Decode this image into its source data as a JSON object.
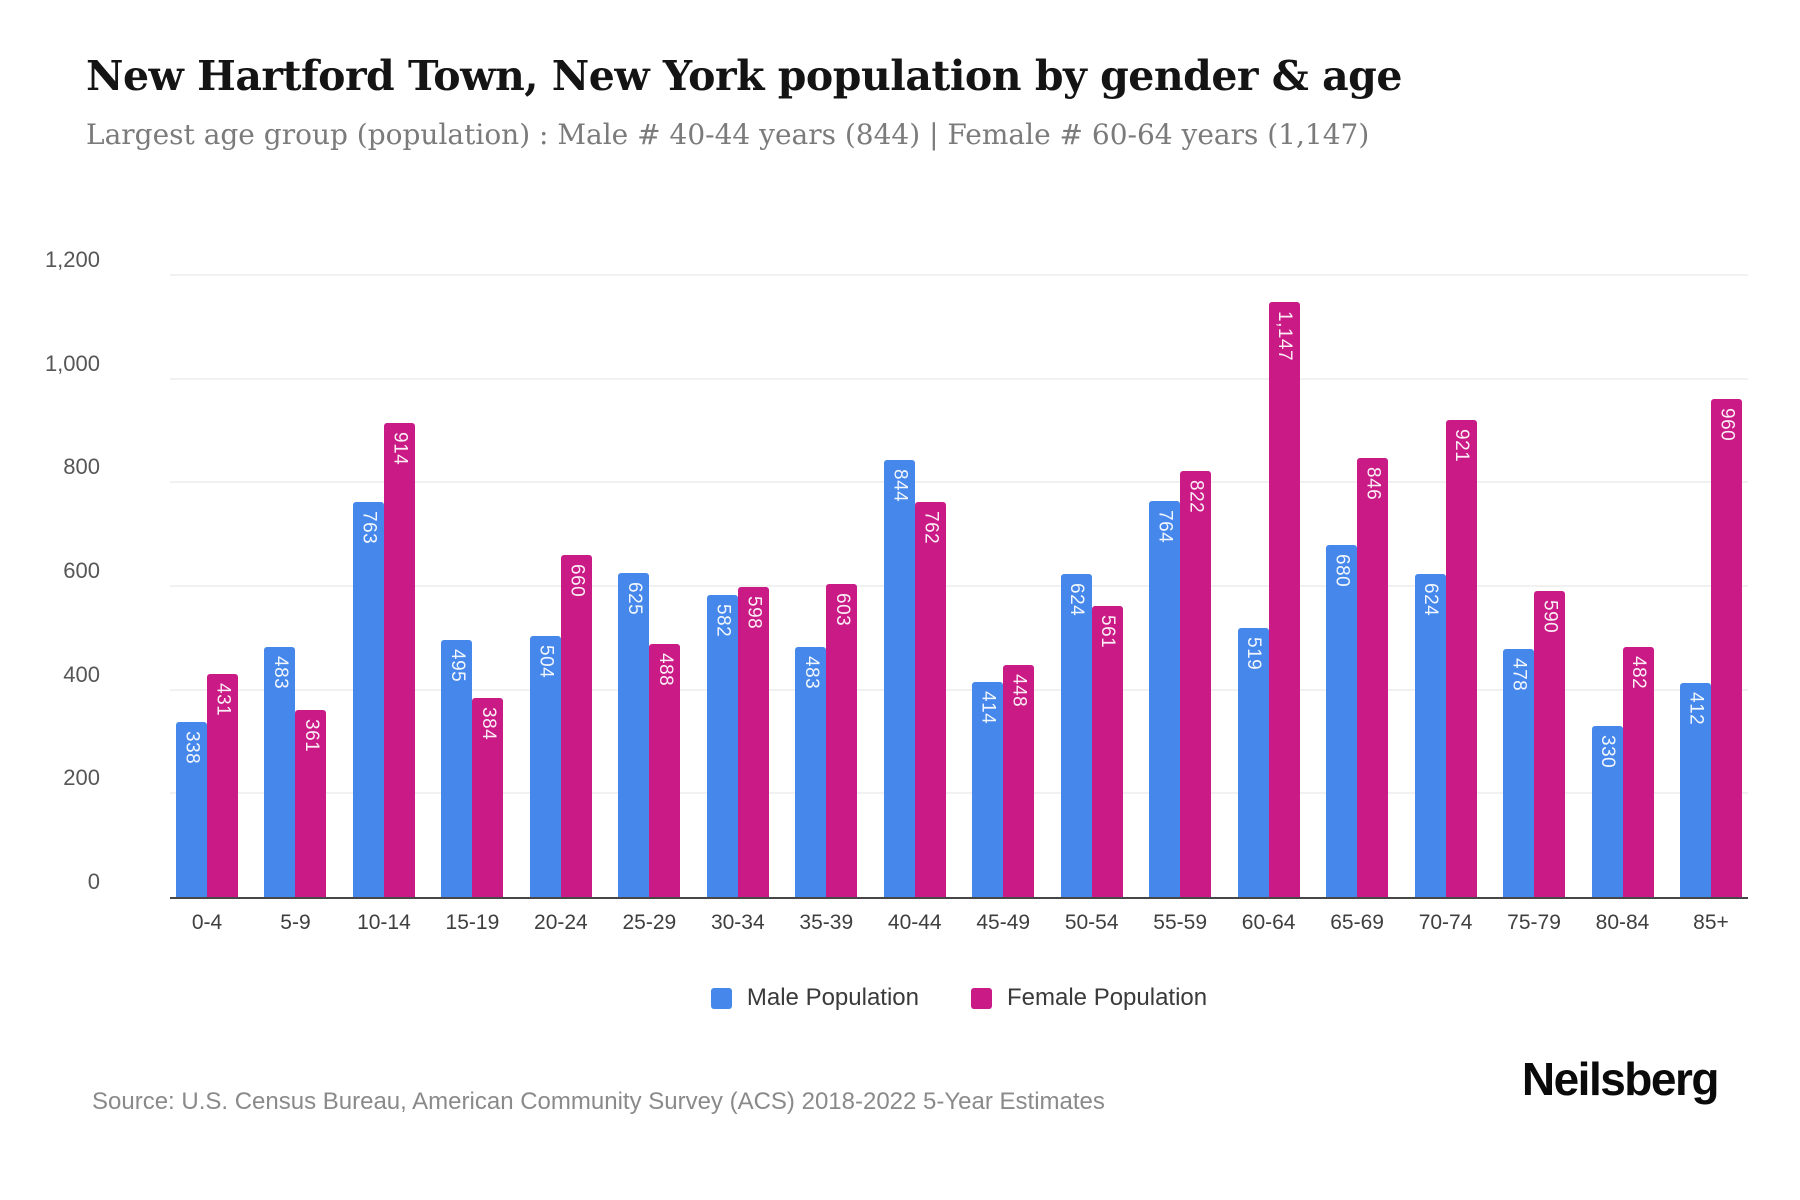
{
  "page": {
    "title": "New Hartford Town, New York population by gender & age",
    "subtitle": "Largest age group (population) : Male # 40-44 years (844) | Female # 60-64 years (1,147)",
    "source": "Source: U.S. Census Bureau, American Community Survey (ACS) 2018-2022 5-Year Estimates",
    "brand": "Neilsberg"
  },
  "colors": {
    "male": "#4687EB",
    "female": "#CA1A86",
    "grid": "#f1f1f1",
    "axis": "#474747",
    "bar_value_text": "#ffffff"
  },
  "chart_data": {
    "type": "bar",
    "title": "New Hartford Town, New York population by gender & age",
    "categories": [
      "0-4",
      "5-9",
      "10-14",
      "15-19",
      "20-24",
      "25-29",
      "30-34",
      "35-39",
      "40-44",
      "45-49",
      "50-54",
      "55-59",
      "60-64",
      "65-69",
      "70-74",
      "75-79",
      "80-84",
      "85+"
    ],
    "series": [
      {
        "name": "Male Population",
        "color_key": "male",
        "values": [
          338,
          483,
          763,
          495,
          504,
          625,
          582,
          483,
          844,
          414,
          624,
          764,
          519,
          680,
          624,
          478,
          330,
          412
        ]
      },
      {
        "name": "Female Population",
        "color_key": "female",
        "values": [
          431,
          361,
          914,
          384,
          660,
          488,
          598,
          603,
          762,
          448,
          561,
          822,
          1147,
          846,
          921,
          590,
          482,
          960
        ]
      }
    ],
    "xlabel": "",
    "ylabel": "",
    "ylim": [
      0,
      1200
    ],
    "yticks": [
      0,
      200,
      400,
      600,
      800,
      1000,
      1200
    ],
    "grid": true,
    "legend_position": "bottom",
    "bar_value_labels": true
  }
}
